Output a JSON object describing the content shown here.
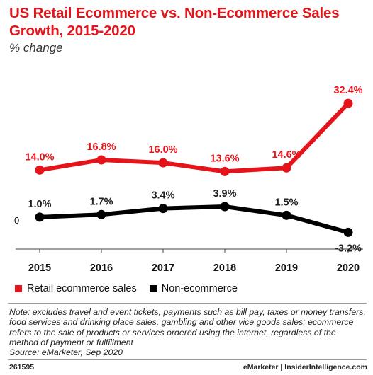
{
  "title": "US Retail Ecommerce vs. Non-Ecommerce Sales Growth, 2015-2020",
  "subtitle": "% change",
  "colors": {
    "ecommerce": "#e5141b",
    "non_ecommerce": "#000000"
  },
  "chart_data": {
    "type": "line",
    "title": "US Retail Ecommerce vs. Non-Ecommerce Sales Growth, 2015-2020",
    "subtitle": "% change",
    "xlabel": "",
    "ylabel": "",
    "categories": [
      "2015",
      "2016",
      "2017",
      "2018",
      "2019",
      "2020"
    ],
    "series": [
      {
        "name": "Retail ecommerce sales",
        "values": [
          14.0,
          16.8,
          16.0,
          13.6,
          14.6,
          32.4
        ],
        "labels": [
          "14.0%",
          "16.8%",
          "16.0%",
          "13.6%",
          "14.6%",
          "32.4%"
        ],
        "color": "#e5141b"
      },
      {
        "name": "Non-ecommerce",
        "values": [
          1.0,
          1.7,
          3.4,
          3.9,
          1.5,
          -3.2
        ],
        "labels": [
          "1.0%",
          "1.7%",
          "3.4%",
          "3.9%",
          "1.5%",
          "-3.2%"
        ],
        "color": "#000000"
      }
    ],
    "y_ticks": [
      "0"
    ],
    "ylim": [
      -6,
      38
    ],
    "grid": false,
    "legend_position": "bottom-left"
  },
  "note": "Note: excludes travel and event tickets, payments such as bill pay, taxes or money transfers, food services and drinking place sales, gambling and other vice goods sales; ecommerce refers to the sale of products or services ordered using the internet, regardless of the method of payment or fulfillment",
  "source": "Source: eMarketer, Sep 2020",
  "footer": {
    "id": "261595",
    "brand": "eMarketer | InsiderIntelligence.com"
  }
}
